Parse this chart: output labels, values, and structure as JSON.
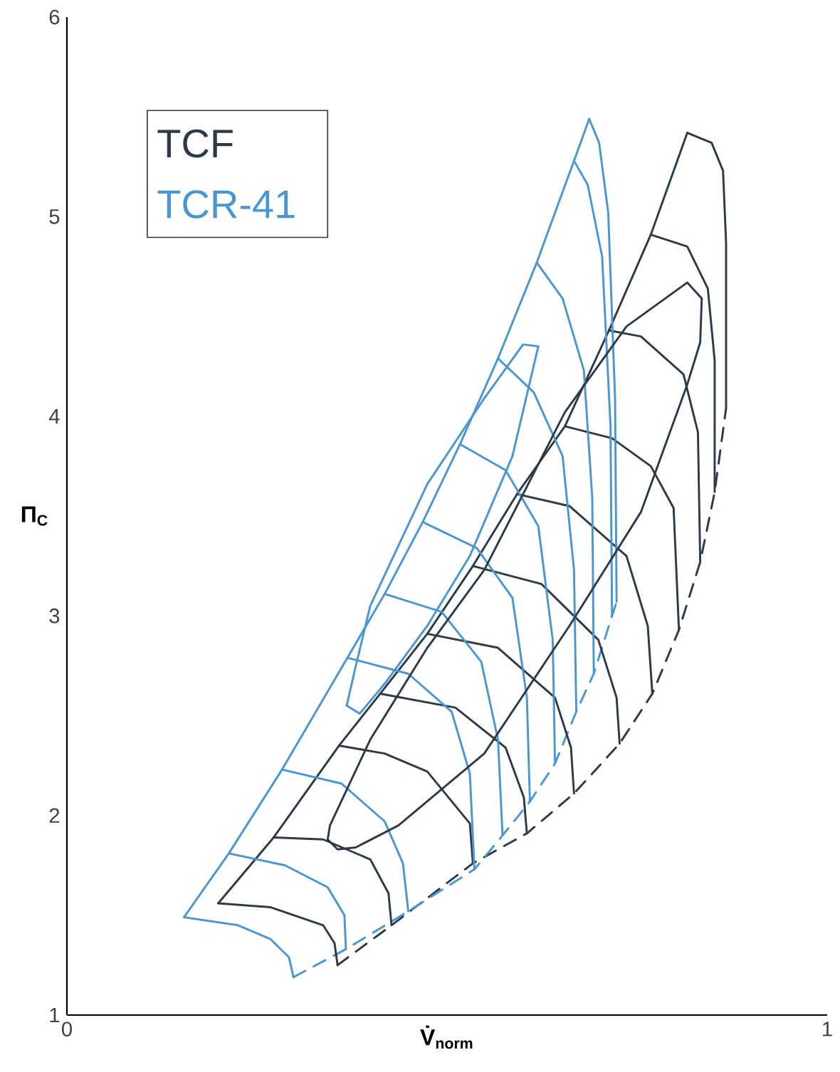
{
  "chart_data": {
    "type": "line",
    "xlabel": "V̇$_{norm}$",
    "ylabel": "Π$_{C}$",
    "xlim": [
      0,
      1
    ],
    "ylim": [
      1,
      6
    ],
    "xticks": [
      0,
      1
    ],
    "yticks": [
      1,
      2,
      3,
      4,
      5,
      6
    ],
    "grid": false,
    "legend": "top left",
    "marker": "none",
    "series": [
      {
        "name": "TCF",
        "color": "#2e3a48",
        "x": [
          0.199,
          0.272,
          0.358,
          0.412,
          0.474,
          0.534,
          0.592,
          0.655,
          0.713,
          0.768,
          0.816
        ],
        "values": [
          1.56,
          1.89,
          2.35,
          2.61,
          2.91,
          3.25,
          3.61,
          3.95,
          4.43,
          4.91,
          5.42
        ]
      },
      {
        "name": "TCR-41",
        "color": "#4a96d2",
        "x": [
          0.154,
          0.213,
          0.283,
          0.369,
          0.418,
          0.468,
          0.517,
          0.567,
          0.618,
          0.667,
          0.687
        ],
        "values": [
          1.49,
          1.81,
          2.23,
          2.79,
          3.11,
          3.47,
          3.86,
          4.29,
          4.77,
          5.28,
          5.49
        ]
      },
      {
        "color": "#2e3a48",
        "line_style": "dashed",
        "x": [
          0.356,
          0.427,
          0.534,
          0.605,
          0.667,
          0.727,
          0.77,
          0.805,
          0.833,
          0.852,
          0.867
        ],
        "values": [
          1.25,
          1.45,
          1.76,
          1.91,
          2.11,
          2.36,
          2.61,
          2.93,
          3.27,
          3.62,
          4.04
        ]
      },
      {
        "color": "#4a96d2",
        "line_style": "dashed",
        "x": [
          0.298,
          0.367,
          0.449,
          0.536,
          0.573,
          0.609,
          0.642,
          0.67,
          0.693,
          0.717,
          0.723
        ],
        "values": [
          1.19,
          1.33,
          1.52,
          1.73,
          1.9,
          2.07,
          2.26,
          2.52,
          2.71,
          3.0,
          3.07
        ]
      },
      {
        "color": "#2e3a48",
        "x": [
          0.199,
          0.268,
          0.337,
          0.352,
          0.356
        ],
        "values": [
          1.56,
          1.54,
          1.45,
          1.36,
          1.25
        ]
      },
      {
        "color": "#2e3a48",
        "x": [
          0.272,
          0.337,
          0.399,
          0.423,
          0.427
        ],
        "values": [
          1.89,
          1.88,
          1.78,
          1.61,
          1.45
        ]
      },
      {
        "color": "#2e3a48",
        "x": [
          0.358,
          0.418,
          0.474,
          0.53,
          0.534
        ],
        "values": [
          2.35,
          2.31,
          2.22,
          1.96,
          1.76
        ]
      },
      {
        "color": "#2e3a48",
        "x": [
          0.412,
          0.511,
          0.577,
          0.601,
          0.605
        ],
        "values": [
          2.61,
          2.54,
          2.34,
          2.09,
          1.91
        ]
      },
      {
        "color": "#2e3a48",
        "x": [
          0.474,
          0.567,
          0.642,
          0.663,
          0.667
        ],
        "values": [
          2.91,
          2.84,
          2.59,
          2.34,
          2.11
        ]
      },
      {
        "color": "#2e3a48",
        "x": [
          0.534,
          0.624,
          0.699,
          0.723,
          0.727
        ],
        "values": [
          3.25,
          3.16,
          2.88,
          2.59,
          2.36
        ]
      },
      {
        "color": "#2e3a48",
        "x": [
          0.592,
          0.661,
          0.736,
          0.764,
          0.77
        ],
        "values": [
          3.61,
          3.55,
          3.3,
          2.95,
          2.61
        ]
      },
      {
        "color": "#2e3a48",
        "x": [
          0.655,
          0.717,
          0.768,
          0.798,
          0.805
        ],
        "values": [
          3.95,
          3.89,
          3.75,
          3.54,
          2.93
        ]
      },
      {
        "color": "#2e3a48",
        "x": [
          0.713,
          0.755,
          0.811,
          0.83,
          0.833
        ],
        "values": [
          4.43,
          4.4,
          4.21,
          3.92,
          3.27
        ]
      },
      {
        "color": "#2e3a48",
        "x": [
          0.768,
          0.816,
          0.843,
          0.852,
          0.852
        ],
        "values": [
          4.91,
          4.85,
          4.64,
          4.28,
          3.62
        ]
      },
      {
        "color": "#2e3a48",
        "x": [
          0.816,
          0.848,
          0.863,
          0.867,
          0.867
        ],
        "values": [
          5.42,
          5.37,
          5.23,
          4.87,
          4.04
        ]
      },
      {
        "color": "#4a96d2",
        "x": [
          0.154,
          0.225,
          0.268,
          0.292,
          0.298
        ],
        "values": [
          1.49,
          1.45,
          1.38,
          1.29,
          1.19
        ]
      },
      {
        "color": "#4a96d2",
        "x": [
          0.213,
          0.287,
          0.343,
          0.365,
          0.367
        ],
        "values": [
          1.81,
          1.75,
          1.64,
          1.5,
          1.33
        ]
      },
      {
        "color": "#4a96d2",
        "x": [
          0.283,
          0.361,
          0.418,
          0.442,
          0.449
        ],
        "values": [
          2.23,
          2.16,
          1.97,
          1.76,
          1.52
        ]
      },
      {
        "color": "#4a96d2",
        "x": [
          0.369,
          0.449,
          0.506,
          0.53,
          0.536
        ],
        "values": [
          2.79,
          2.71,
          2.52,
          2.21,
          1.73
        ]
      },
      {
        "color": "#4a96d2",
        "x": [
          0.418,
          0.493,
          0.545,
          0.567,
          0.573
        ],
        "values": [
          3.11,
          3.02,
          2.77,
          2.38,
          1.9
        ]
      },
      {
        "color": "#4a96d2",
        "x": [
          0.468,
          0.539,
          0.586,
          0.605,
          0.609
        ],
        "values": [
          3.47,
          3.34,
          3.09,
          2.59,
          2.07
        ]
      },
      {
        "color": "#4a96d2",
        "x": [
          0.517,
          0.577,
          0.62,
          0.639,
          0.642
        ],
        "values": [
          3.86,
          3.73,
          3.45,
          2.88,
          2.26
        ]
      },
      {
        "color": "#4a96d2",
        "x": [
          0.567,
          0.614,
          0.652,
          0.667,
          0.67
        ],
        "values": [
          4.29,
          4.12,
          3.8,
          3.23,
          2.52
        ]
      },
      {
        "color": "#4a96d2",
        "x": [
          0.618,
          0.652,
          0.68,
          0.691,
          0.693
        ],
        "values": [
          4.77,
          4.59,
          4.23,
          3.59,
          2.71
        ]
      },
      {
        "color": "#4a96d2",
        "x": [
          0.667,
          0.685,
          0.704,
          0.715,
          0.717
        ],
        "values": [
          5.28,
          5.16,
          4.8,
          3.95,
          3.0
        ]
      },
      {
        "color": "#4a96d2",
        "x": [
          0.687,
          0.7,
          0.712,
          0.721,
          0.723
        ],
        "values": [
          5.49,
          5.37,
          5.02,
          4.09,
          3.07
        ]
      },
      {
        "color": "#4a96d2",
        "x": [
          0.368,
          0.38,
          0.399,
          0.474,
          0.549,
          0.6,
          0.62
        ],
        "values": [
          2.55,
          2.75,
          3.05,
          3.66,
          4.09,
          4.36,
          4.35
        ]
      },
      {
        "color": "#4a96d2",
        "x": [
          0.368,
          0.385,
          0.418,
          0.474,
          0.53,
          0.586,
          0.62
        ],
        "values": [
          2.55,
          2.51,
          2.66,
          2.95,
          3.3,
          3.8,
          4.35
        ]
      },
      {
        "color": "#2e3a48",
        "x": [
          0.343,
          0.346,
          0.399,
          0.474,
          0.549,
          0.655,
          0.736,
          0.816,
          0.835
        ],
        "values": [
          1.88,
          1.95,
          2.38,
          2.84,
          3.23,
          4.02,
          4.45,
          4.67,
          4.59
        ]
      },
      {
        "color": "#2e3a48",
        "x": [
          0.343,
          0.356,
          0.38,
          0.436,
          0.549,
          0.661,
          0.755,
          0.816,
          0.833,
          0.835
        ],
        "values": [
          1.88,
          1.83,
          1.84,
          1.95,
          2.31,
          2.95,
          3.52,
          4.16,
          4.37,
          4.59
        ]
      }
    ]
  }
}
